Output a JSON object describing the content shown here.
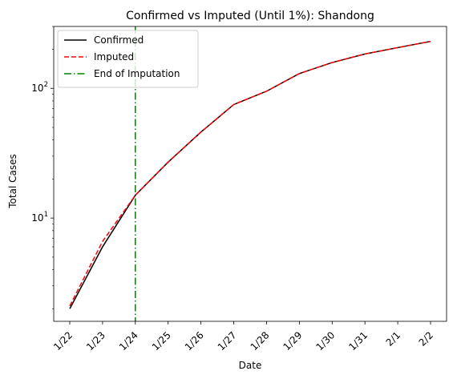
{
  "chart_data": {
    "type": "line",
    "title": "Confirmed vs Imputed (Until 1%): Shandong",
    "xlabel": "Date",
    "ylabel": "Total Cases",
    "yscale": "log",
    "ylim": [
      1.6,
      300
    ],
    "categories": [
      "1/22",
      "1/23",
      "1/24",
      "1/25",
      "1/26",
      "1/27",
      "1/28",
      "1/29",
      "1/30",
      "1/31",
      "2/1",
      "2/2"
    ],
    "y_ticks": [
      {
        "value": 10,
        "base": "10",
        "exp": "1"
      },
      {
        "value": 100,
        "base": "10",
        "exp": "2"
      }
    ],
    "series": [
      {
        "name": "Confirmed",
        "color": "#000000",
        "style": "solid",
        "values": [
          2,
          6,
          15,
          27,
          46,
          75,
          95,
          130,
          158,
          184,
          206,
          230
        ]
      },
      {
        "name": "Imputed",
        "color": "#ff0000",
        "style": "dashed",
        "values": [
          2.1,
          6.6,
          15,
          27,
          46,
          75,
          95,
          130,
          158,
          184,
          206,
          230
        ]
      }
    ],
    "vline": {
      "name": "End of Imputation",
      "category": "1/24",
      "color": "#008000",
      "style": "dashdot"
    },
    "legend_position": "top-left"
  }
}
